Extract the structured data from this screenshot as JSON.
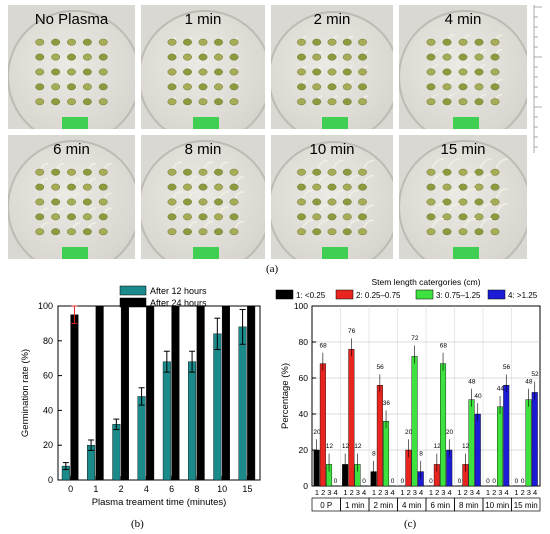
{
  "figure": {
    "label_a": "(a)",
    "label_b": "(b)",
    "label_c": "(c)",
    "panels": [
      "No Plasma",
      "1 min",
      "2 min",
      "4 min",
      "6 min",
      "8 min",
      "10 min",
      "15 min"
    ]
  },
  "chart_data": [
    {
      "type": "bar",
      "xlabel": "Plasma treament time (minutes)",
      "ylabel": "Germination rate (%)",
      "categories": [
        "0",
        "1",
        "2",
        "4",
        "6",
        "8",
        "10",
        "15"
      ],
      "ylim": [
        0,
        100
      ],
      "yticks": [
        "0",
        "20",
        "40",
        "60",
        "80",
        "100"
      ],
      "legend_position": "top",
      "series": [
        {
          "name": "After 12 hours",
          "color": "#1b8a8a",
          "values": [
            8,
            20,
            32,
            48,
            68,
            68,
            84,
            88
          ],
          "errors": [
            2,
            3,
            3,
            5,
            6,
            6,
            9,
            10
          ]
        },
        {
          "name": "After 24 hours",
          "color": "#000000",
          "values": [
            95,
            100,
            100,
            100,
            100,
            100,
            100,
            100
          ],
          "errors": [
            5,
            0,
            0,
            0,
            0,
            0,
            0,
            0
          ]
        }
      ],
      "grid": false
    },
    {
      "type": "bar",
      "title": "Stem length catergories (cm)",
      "ylabel": "Percentage (%)",
      "categories": [
        "0 P",
        "1 min",
        "2 min",
        "4 min",
        "6 min",
        "8 min",
        "10 min",
        "15 min"
      ],
      "subcategories": [
        "1",
        "2",
        "3",
        "4"
      ],
      "ylim": [
        0,
        100
      ],
      "yticks": [
        "0",
        "20",
        "40",
        "60",
        "80",
        "100"
      ],
      "legend_position": "top",
      "series": [
        {
          "name": "1: <0.25",
          "color": "#000000",
          "values": [
            20,
            12,
            8,
            0,
            0,
            0,
            0,
            0
          ]
        },
        {
          "name": "2: 0.25–0.75",
          "color": "#e8251f",
          "values": [
            68,
            76,
            56,
            20,
            12,
            12,
            0,
            0
          ]
        },
        {
          "name": "3: 0.75–1.25",
          "color": "#3ee23e",
          "values": [
            12,
            12,
            36,
            72,
            68,
            48,
            44,
            48
          ]
        },
        {
          "name": "4: >1.25",
          "color": "#1c1cd6",
          "values": [
            0,
            0,
            0,
            8,
            20,
            40,
            56,
            52
          ]
        }
      ],
      "grid": true
    }
  ]
}
